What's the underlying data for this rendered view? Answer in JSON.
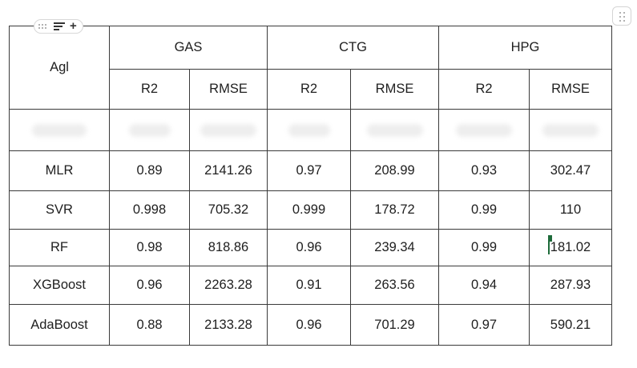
{
  "table": {
    "corner_header": "Agl",
    "groups": [
      "GAS",
      "CTG",
      "HPG"
    ],
    "subheaders": [
      "R2",
      "RMSE",
      "R2",
      "RMSE",
      "R2",
      "RMSE"
    ],
    "rows": [
      {
        "model": "MLR",
        "values": [
          "0.89",
          "2141.26",
          "0.97",
          "208.99",
          "0.93",
          "302.47"
        ]
      },
      {
        "model": "SVR",
        "values": [
          "0.998",
          "705.32",
          "0.999",
          "178.72",
          "0.99",
          "110"
        ]
      },
      {
        "model": "RF",
        "values": [
          "0.98",
          "818.86",
          "0.96",
          "239.34",
          "0.99",
          "181.02"
        ]
      },
      {
        "model": "XGBoost",
        "values": [
          "0.96",
          "2263.28",
          "0.91",
          "263.56",
          "0.94",
          "287.93"
        ]
      },
      {
        "model": "AdaBoost",
        "values": [
          "0.88",
          "2133.28",
          "0.96",
          "701.29",
          "0.97",
          "590.21"
        ]
      }
    ]
  },
  "icons": {
    "block_handle": [
      "drag-dots-icon",
      "align-lines-icon",
      "plus-icon"
    ],
    "corner_handle": "drag-dots-icon",
    "cursor_color": "#1e6b3a"
  }
}
